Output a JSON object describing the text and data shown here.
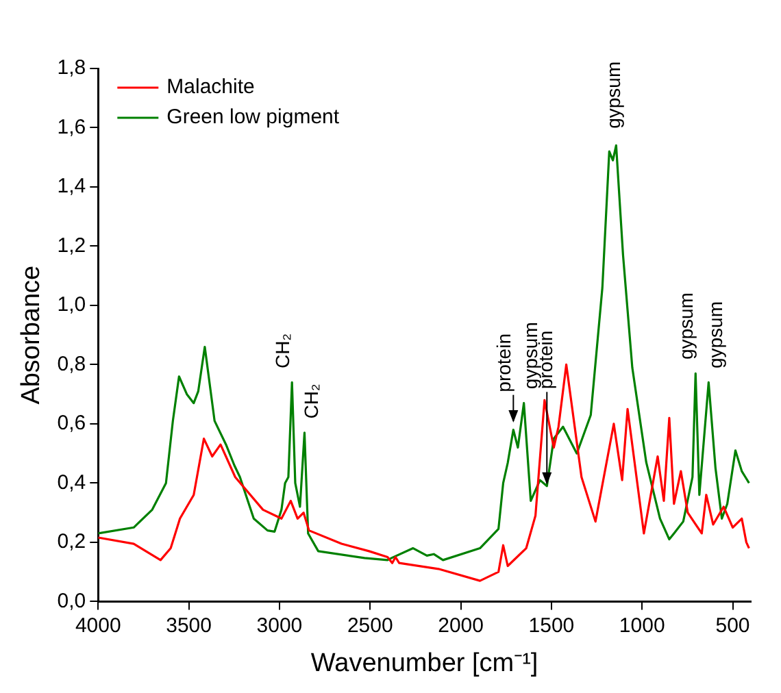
{
  "chart_data": {
    "type": "line",
    "xlabel": "Wavenumber [cm⁻¹]",
    "ylabel": "Absorbance",
    "xlim": [
      4000,
      400
    ],
    "xticks": [
      4000,
      3500,
      3000,
      2500,
      2000,
      1500,
      1000,
      500
    ],
    "ylim": [
      0,
      1.8
    ],
    "yticks": [
      {
        "value": 0,
        "label": "0,0"
      },
      {
        "value": 0.2,
        "label": "0,2"
      },
      {
        "value": 0.4,
        "label": "0,4"
      },
      {
        "value": 0.6,
        "label": "0,6"
      },
      {
        "value": 0.8,
        "label": "0,8"
      },
      {
        "value": 1,
        "label": "1,0"
      },
      {
        "value": 1.2,
        "label": "1,2"
      },
      {
        "value": 1.4,
        "label": "1,4"
      },
      {
        "value": 1.6,
        "label": "1,6"
      },
      {
        "value": 1.8,
        "label": "1,8"
      }
    ],
    "grid": false,
    "legend": "top left",
    "marker": "none",
    "line_style": "solid",
    "series": [
      {
        "name": "Malachite",
        "color": "#ff0000",
        "x": [
          4000,
          3804,
          3656,
          3600,
          3549,
          3473,
          3417,
          3371,
          3325,
          3244,
          3091,
          2989,
          2938,
          2900,
          2867,
          2837,
          2658,
          2506,
          2404,
          2378,
          2360,
          2340,
          2123,
          1894,
          1792,
          1766,
          1741,
          1639,
          1588,
          1538,
          1487,
          1461,
          1418,
          1334,
          1257,
          1156,
          1110,
          1080,
          990,
          914,
          880,
          850,
          824,
          786,
          748,
          671,
          646,
          608,
          550,
          500,
          450,
          425,
          410
        ],
        "values": [
          0.216,
          0.195,
          0.14,
          0.18,
          0.28,
          0.36,
          0.55,
          0.49,
          0.53,
          0.42,
          0.31,
          0.28,
          0.34,
          0.28,
          0.3,
          0.24,
          0.195,
          0.17,
          0.15,
          0.13,
          0.15,
          0.13,
          0.11,
          0.07,
          0.1,
          0.19,
          0.12,
          0.18,
          0.29,
          0.68,
          0.52,
          0.59,
          0.8,
          0.42,
          0.27,
          0.6,
          0.41,
          0.65,
          0.23,
          0.49,
          0.34,
          0.62,
          0.33,
          0.44,
          0.3,
          0.23,
          0.36,
          0.26,
          0.32,
          0.25,
          0.28,
          0.2,
          0.18
        ]
      },
      {
        "name": "Green low pigment",
        "color": "#008000",
        "x": [
          4000,
          3804,
          3702,
          3626,
          3588,
          3554,
          3511,
          3473,
          3448,
          3412,
          3358,
          3295,
          3249,
          3218,
          3142,
          3066,
          3027,
          2989,
          2969,
          2951,
          2931,
          2913,
          2887,
          2862,
          2842,
          2786,
          2531,
          2404,
          2378,
          2263,
          2187,
          2149,
          2098,
          1894,
          1792,
          1766,
          1741,
          1710,
          1685,
          1652,
          1614,
          1563,
          1525,
          1487,
          1436,
          1360,
          1283,
          1219,
          1181,
          1161,
          1143,
          1105,
          1054,
          977,
          901,
          850,
          824,
          773,
          722,
          705,
          684,
          633,
          595,
          560,
          530,
          485,
          450,
          430,
          410
        ],
        "values": [
          0.23,
          0.25,
          0.31,
          0.4,
          0.61,
          0.76,
          0.7,
          0.67,
          0.71,
          0.86,
          0.61,
          0.53,
          0.46,
          0.42,
          0.28,
          0.24,
          0.236,
          0.31,
          0.4,
          0.42,
          0.74,
          0.4,
          0.32,
          0.57,
          0.23,
          0.17,
          0.147,
          0.14,
          0.148,
          0.18,
          0.155,
          0.16,
          0.14,
          0.18,
          0.245,
          0.4,
          0.468,
          0.58,
          0.52,
          0.67,
          0.34,
          0.41,
          0.39,
          0.55,
          0.59,
          0.5,
          0.63,
          1.06,
          1.52,
          1.49,
          1.54,
          1.17,
          0.79,
          0.47,
          0.28,
          0.21,
          0.23,
          0.27,
          0.42,
          0.77,
          0.36,
          0.74,
          0.45,
          0.28,
          0.33,
          0.51,
          0.44,
          0.42,
          0.4
        ]
      }
    ],
    "annotations": [
      {
        "text": "CH₂",
        "x": 2931,
        "y": 0.75
      },
      {
        "text": "CH₂",
        "x": 2862,
        "y": 0.58
      },
      {
        "text": "protein",
        "x": 1710,
        "y": 0.6
      },
      {
        "text": "gypsum",
        "x": 1652,
        "y": 0.68
      },
      {
        "text": "protein",
        "x": 1525,
        "y": 0.39
      },
      {
        "text": "gypsum",
        "x": 1150,
        "y": 1.56
      },
      {
        "text": "gypsum",
        "x": 705,
        "y": 0.78
      },
      {
        "text": "gypsum",
        "x": 633,
        "y": 0.75
      }
    ]
  }
}
